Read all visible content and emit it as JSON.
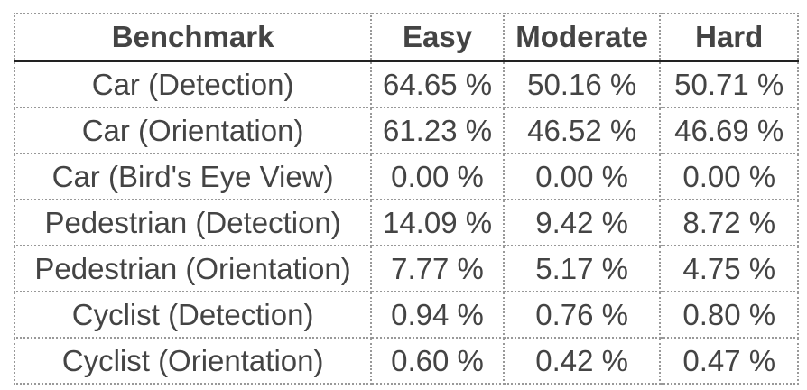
{
  "table": {
    "headers": [
      "Benchmark",
      "Easy",
      "Moderate",
      "Hard"
    ],
    "rows": [
      [
        "Car (Detection)",
        "64.65 %",
        "50.16 %",
        "50.71 %"
      ],
      [
        "Car (Orientation)",
        "61.23 %",
        "46.52 %",
        "46.69 %"
      ],
      [
        "Car (Bird's Eye View)",
        "0.00 %",
        "0.00 %",
        "0.00 %"
      ],
      [
        "Pedestrian (Detection)",
        "14.09 %",
        "9.42 %",
        "8.72 %"
      ],
      [
        "Pedestrian (Orientation)",
        "7.77 %",
        "5.17 %",
        "4.75 %"
      ],
      [
        "Cyclist (Detection)",
        "0.94 %",
        "0.76 %",
        "0.80 %"
      ],
      [
        "Cyclist (Orientation)",
        "0.60 %",
        "0.42 %",
        "0.47 %"
      ]
    ]
  },
  "colors": {
    "text": "#444444",
    "grid": "#999999",
    "header_rule": "#222222"
  }
}
